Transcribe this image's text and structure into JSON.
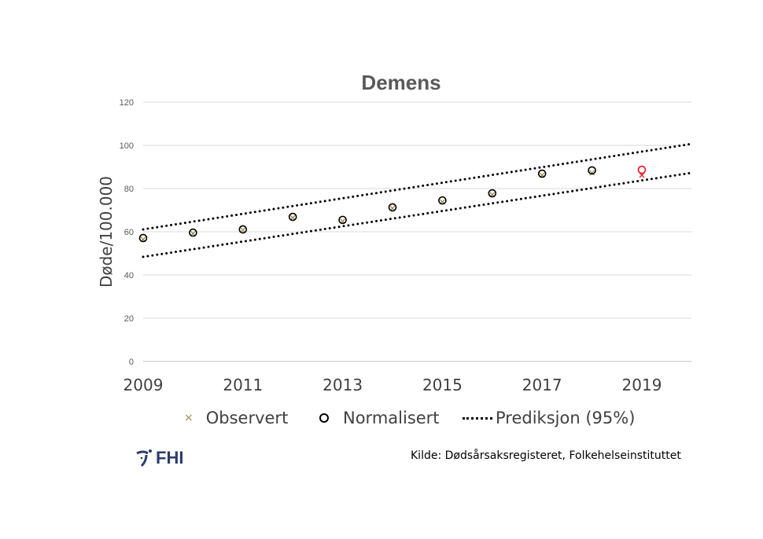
{
  "chart_data": {
    "type": "scatter",
    "title": "Demens",
    "ylabel": "Døde/100.000",
    "xlabel": "",
    "ylim": [
      0,
      120
    ],
    "xlim": [
      2009,
      2020
    ],
    "yticks": [
      0,
      20,
      40,
      60,
      80,
      100,
      120
    ],
    "xticks": [
      2009,
      2011,
      2013,
      2015,
      2017,
      2019
    ],
    "grid": true,
    "legend_placement": "bottom",
    "x": [
      2009,
      2010,
      2011,
      2012,
      2013,
      2014,
      2015,
      2016,
      2017,
      2018,
      2019
    ],
    "series": [
      {
        "name": "Observert",
        "marker": "x",
        "color": "#9c8f4f",
        "highlight_color": "#e8151b",
        "values": [
          56.5,
          59.2,
          60.8,
          66.5,
          64.9,
          70.9,
          73.8,
          77.2,
          86.2,
          87.3,
          86.2
        ]
      },
      {
        "name": "Normalisert",
        "marker": "circle",
        "color": "#000000",
        "highlight_color": "#e8151b",
        "values": [
          57.1,
          59.6,
          61.1,
          66.9,
          65.5,
          71.3,
          74.5,
          77.8,
          86.9,
          88.4,
          88.7
        ]
      },
      {
        "name": "Prediksjon (95%)",
        "style": "dotted-line",
        "color": "#000000",
        "upper": {
          "x": [
            2009,
            2020
          ],
          "y": [
            61.1,
            100.7
          ]
        },
        "lower": {
          "x": [
            2009,
            2020
          ],
          "y": [
            48.4,
            87.3
          ]
        }
      }
    ],
    "highlighted_x": 2019
  },
  "footer": {
    "source": "Kilde: Dødsårsaksregisteret, Folkehelseinstituttet",
    "logo": "FHI"
  }
}
